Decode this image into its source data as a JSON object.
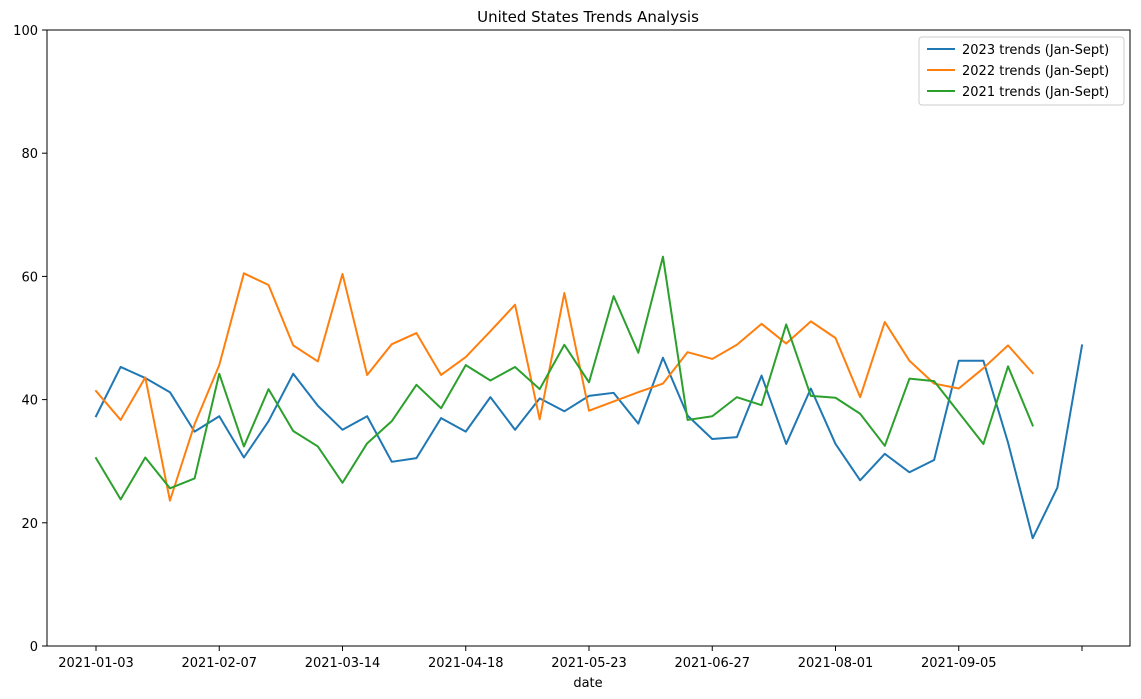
{
  "chart_data": {
    "type": "line",
    "title": "United States Trends Analysis",
    "xlabel": "date",
    "ylabel": "",
    "ylim": [
      0,
      100
    ],
    "yticks": [
      0,
      20,
      40,
      60,
      80,
      100
    ],
    "xticks": [
      "2021-01-03",
      "2021-02-07",
      "2021-03-14",
      "2021-04-18",
      "2021-05-23",
      "2021-06-27",
      "2021-08-01",
      "2021-09-05",
      ""
    ],
    "legend_position": "top-right",
    "grid": false,
    "series": [
      {
        "name": "2023 trends (Jan-Sept)",
        "color": "#1f77b4",
        "values": [
          37.3,
          45.3,
          43.5,
          41.2,
          34.8,
          37.3,
          30.6,
          36.5,
          44.2,
          39.0,
          35.1,
          37.3,
          29.9,
          30.5,
          37.0,
          34.8,
          40.4,
          35.1,
          40.2,
          38.1,
          40.6,
          41.1,
          36.1,
          46.8,
          37.4,
          33.6,
          33.9,
          43.9,
          32.8,
          41.8,
          32.8,
          26.9,
          31.2,
          28.2,
          30.2,
          46.3,
          46.3,
          33.0,
          17.5,
          25.7,
          48.8
        ]
      },
      {
        "name": "2022 trends (Jan-Sept)",
        "color": "#ff7f0e",
        "values": [
          41.4,
          36.7,
          43.6,
          23.6,
          36.0,
          45.6,
          60.5,
          58.6,
          48.8,
          46.2,
          60.4,
          44.0,
          49.0,
          50.8,
          44.0,
          46.9,
          51.1,
          55.4,
          36.8,
          57.3,
          38.2,
          39.7,
          41.2,
          42.6,
          47.7,
          46.6,
          48.9,
          52.3,
          49.1,
          52.7,
          50.0,
          40.4,
          52.6,
          46.3,
          42.6,
          41.8,
          45.1,
          48.8,
          44.3
        ]
      },
      {
        "name": "2021 trends (Jan-Sept)",
        "color": "#2ca02c",
        "values": [
          30.5,
          23.8,
          30.6,
          25.6,
          27.2,
          44.2,
          32.4,
          41.7,
          34.9,
          32.4,
          26.5,
          32.9,
          36.5,
          42.4,
          38.6,
          45.6,
          43.1,
          45.3,
          41.7,
          48.9,
          42.8,
          56.8,
          47.6,
          63.2,
          36.7,
          37.3,
          40.4,
          39.1,
          52.2,
          40.6,
          40.3,
          37.7,
          32.5,
          43.4,
          43.0,
          37.9,
          32.8,
          45.4,
          35.8
        ]
      }
    ]
  }
}
